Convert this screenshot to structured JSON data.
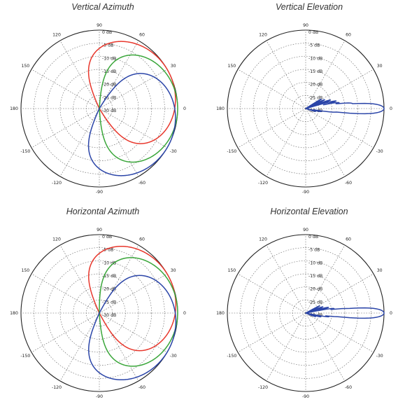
{
  "chart_data": [
    {
      "type": "polar",
      "title": "Vertical Azimuth",
      "radial_unit": "dB",
      "radial_range": [
        -30,
        0
      ],
      "radial_ticks": [
        {
          "value": 0,
          "label": "0 dB"
        },
        {
          "value": -5,
          "label": "-5 dB"
        },
        {
          "value": -10,
          "label": "-10 dB"
        },
        {
          "value": -15,
          "label": "-15 dB"
        },
        {
          "value": -20,
          "label": "-20 dB"
        },
        {
          "value": -25,
          "label": "-25 dB"
        },
        {
          "value": -30,
          "label": "-30 dB"
        }
      ],
      "angle_ticks": [
        {
          "value": 0,
          "label": "0"
        },
        {
          "value": 30,
          "label": "30"
        },
        {
          "value": 60,
          "label": "60"
        },
        {
          "value": 90,
          "label": "90"
        },
        {
          "value": 120,
          "label": "120"
        },
        {
          "value": 150,
          "label": "150"
        },
        {
          "value": 180,
          "label": "180"
        },
        {
          "value": -150,
          "label": "-150"
        },
        {
          "value": -120,
          "label": "-120"
        },
        {
          "value": -90,
          "label": "-90"
        },
        {
          "value": -60,
          "label": "-60"
        },
        {
          "value": -30,
          "label": "-30"
        }
      ],
      "grid": true,
      "series": [
        {
          "color": "#e8372c",
          "lobes": [
            {
              "center": 28,
              "width": 88,
              "peak": 0
            }
          ]
        },
        {
          "color": "#3aa63a",
          "lobes": [
            {
              "center": 0,
              "width": 88,
              "peak": 0
            }
          ]
        },
        {
          "color": "#2b45a8",
          "lobes": [
            {
              "center": -28,
              "width": 88,
              "peak": 0
            }
          ]
        }
      ]
    },
    {
      "type": "polar",
      "title": "Vertical Elevation",
      "radial_unit": "dB",
      "radial_range": [
        -30,
        0
      ],
      "radial_ticks": [
        {
          "value": 0,
          "label": "0 dB"
        },
        {
          "value": -5,
          "label": "-5 dB"
        },
        {
          "value": -10,
          "label": "-10 dB"
        },
        {
          "value": -15,
          "label": "-15 dB"
        },
        {
          "value": -20,
          "label": "-20 dB"
        },
        {
          "value": -25,
          "label": "-25 dB"
        },
        {
          "value": -30,
          "label": "-30 dB"
        }
      ],
      "angle_ticks": [
        {
          "value": 0,
          "label": "0"
        },
        {
          "value": 30,
          "label": "30"
        },
        {
          "value": 60,
          "label": "60"
        },
        {
          "value": 90,
          "label": "90"
        },
        {
          "value": 120,
          "label": "120"
        },
        {
          "value": 150,
          "label": "150"
        },
        {
          "value": 180,
          "label": "180"
        },
        {
          "value": -150,
          "label": "-150"
        },
        {
          "value": -120,
          "label": "-120"
        },
        {
          "value": -90,
          "label": "-90"
        },
        {
          "value": -60,
          "label": "-60"
        },
        {
          "value": -30,
          "label": "-30"
        }
      ],
      "grid": true,
      "series": [
        {
          "color": "#2b45a8",
          "lobes": [
            {
              "center": 0,
              "width": 7,
              "peak": 0
            },
            {
              "center": 6,
              "width": 4,
              "peak": -12
            },
            {
              "center": 10,
              "width": 3,
              "peak": -17
            },
            {
              "center": 14,
              "width": 3,
              "peak": -18
            },
            {
              "center": 19,
              "width": 3,
              "peak": -20
            },
            {
              "center": 25,
              "width": 3,
              "peak": -22
            },
            {
              "center": 31,
              "width": 3,
              "peak": -23
            },
            {
              "center": -6,
              "width": 4,
              "peak": -18
            },
            {
              "center": -11,
              "width": 3,
              "peak": -24
            },
            {
              "center": -16,
              "width": 3,
              "peak": -26
            }
          ]
        }
      ]
    },
    {
      "type": "polar",
      "title": "Horizontal Azimuth",
      "radial_unit": "dB",
      "radial_range": [
        -30,
        0
      ],
      "radial_ticks": [
        {
          "value": 0,
          "label": "0 dB"
        },
        {
          "value": -5,
          "label": "-5 dB"
        },
        {
          "value": -10,
          "label": "-10 dB"
        },
        {
          "value": -15,
          "label": "-15 dB"
        },
        {
          "value": -20,
          "label": "-20 dB"
        },
        {
          "value": -25,
          "label": "-25 dB"
        },
        {
          "value": -30,
          "label": "-30 dB"
        }
      ],
      "angle_ticks": [
        {
          "value": 0,
          "label": "0"
        },
        {
          "value": 30,
          "label": "30"
        },
        {
          "value": 60,
          "label": "60"
        },
        {
          "value": 90,
          "label": "90"
        },
        {
          "value": 120,
          "label": "120"
        },
        {
          "value": 150,
          "label": "150"
        },
        {
          "value": 180,
          "label": "180"
        },
        {
          "value": -150,
          "label": "-150"
        },
        {
          "value": -120,
          "label": "-120"
        },
        {
          "value": -90,
          "label": "-90"
        },
        {
          "value": -60,
          "label": "-60"
        },
        {
          "value": -30,
          "label": "-30"
        }
      ],
      "grid": true,
      "series": [
        {
          "color": "#e8372c",
          "lobes": [
            {
              "center": 26,
              "width": 90,
              "peak": 0
            }
          ]
        },
        {
          "color": "#3aa63a",
          "lobes": [
            {
              "center": 2,
              "width": 90,
              "peak": 0
            }
          ]
        },
        {
          "color": "#2b45a8",
          "lobes": [
            {
              "center": -26,
              "width": 90,
              "peak": 0
            }
          ]
        }
      ]
    },
    {
      "type": "polar",
      "title": "Horizontal Elevation",
      "radial_unit": "dB",
      "radial_range": [
        -30,
        0
      ],
      "radial_ticks": [
        {
          "value": 0,
          "label": "0 dB"
        },
        {
          "value": -5,
          "label": "-5 dB"
        },
        {
          "value": -10,
          "label": "-10 dB"
        },
        {
          "value": -15,
          "label": "-15 dB"
        },
        {
          "value": -20,
          "label": "-20 dB"
        },
        {
          "value": -25,
          "label": "-25 dB"
        },
        {
          "value": -30,
          "label": "-30 dB"
        }
      ],
      "angle_ticks": [
        {
          "value": 0,
          "label": "0"
        },
        {
          "value": 30,
          "label": "30"
        },
        {
          "value": 60,
          "label": "60"
        },
        {
          "value": 90,
          "label": "90"
        },
        {
          "value": 120,
          "label": "120"
        },
        {
          "value": 150,
          "label": "150"
        },
        {
          "value": 180,
          "label": "180"
        },
        {
          "value": -150,
          "label": "-150"
        },
        {
          "value": -120,
          "label": "-120"
        },
        {
          "value": -90,
          "label": "-90"
        },
        {
          "value": -60,
          "label": "-60"
        },
        {
          "value": -30,
          "label": "-30"
        }
      ],
      "grid": true,
      "series": [
        {
          "color": "#2b45a8",
          "lobes": [
            {
              "center": 0,
              "width": 7,
              "peak": 0
            },
            {
              "center": 5,
              "width": 4,
              "peak": -13
            },
            {
              "center": 9,
              "width": 3,
              "peak": -19
            },
            {
              "center": 14,
              "width": 3,
              "peak": -21
            },
            {
              "center": 20,
              "width": 3,
              "peak": -23
            },
            {
              "center": 27,
              "width": 3,
              "peak": -24
            },
            {
              "center": -5,
              "width": 4,
              "peak": -16
            },
            {
              "center": -9,
              "width": 3,
              "peak": -21
            },
            {
              "center": -14,
              "width": 3,
              "peak": -24
            },
            {
              "center": -20,
              "width": 3,
              "peak": -26
            }
          ]
        }
      ]
    }
  ]
}
